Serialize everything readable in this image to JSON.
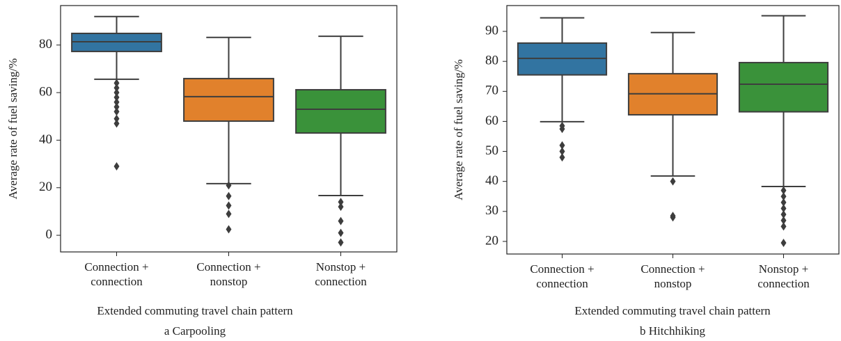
{
  "chart_data": [
    {
      "type": "box",
      "title": "a Carpooling",
      "xlabel": "Extended commuting travel chain pattern",
      "ylabel": "Average rate of fuel saving/%",
      "categories": [
        [
          "Connection +",
          "connection"
        ],
        [
          "Connection +",
          "nonstop"
        ],
        [
          "Nonstop +",
          "connection"
        ]
      ],
      "colors": [
        "#3274a1",
        "#e1812c",
        "#3a923a"
      ],
      "ylim": [
        -7,
        96.6
      ],
      "yticks": [
        0,
        20,
        40,
        60,
        80
      ],
      "series": [
        {
          "whislo": 65.6,
          "q1": 77.3,
          "med": 81.4,
          "q3": 84.9,
          "whishi": 92,
          "fliers": [
            64,
            62,
            60,
            58,
            56,
            54,
            52,
            49,
            47,
            29
          ]
        },
        {
          "whislo": 21.7,
          "q1": 48,
          "med": 58.3,
          "q3": 65.9,
          "whishi": 83.2,
          "fliers": [
            21,
            16.5,
            12.5,
            9,
            2.5
          ]
        },
        {
          "whislo": 16.7,
          "q1": 43,
          "med": 53,
          "q3": 61.2,
          "whishi": 83.7,
          "fliers": [
            14,
            12,
            6,
            1,
            -3
          ]
        }
      ]
    },
    {
      "type": "box",
      "title": "b Hitchhiking",
      "xlabel": "Extended commuting travel chain pattern",
      "ylabel": "Average rate of fuel saving/%",
      "categories": [
        [
          "Connection +",
          "connection"
        ],
        [
          "Connection +",
          "nonstop"
        ],
        [
          "Nonstop +",
          "connection"
        ]
      ],
      "colors": [
        "#3274a1",
        "#e1812c",
        "#3a923a"
      ],
      "ylim": [
        15.8,
        98.6
      ],
      "yticks": [
        20,
        30,
        40,
        50,
        60,
        70,
        80,
        90
      ],
      "series": [
        {
          "whislo": 59.9,
          "q1": 75.5,
          "med": 81,
          "q3": 86.1,
          "whishi": 94.5,
          "fliers": [
            58.5,
            57.5,
            52,
            50,
            48
          ]
        },
        {
          "whislo": 41.8,
          "q1": 62.2,
          "med": 69.2,
          "q3": 75.9,
          "whishi": 89.6,
          "fliers": [
            40,
            28.5,
            28
          ]
        },
        {
          "whislo": 38.3,
          "q1": 63.2,
          "med": 72.4,
          "q3": 79.6,
          "whishi": 95.2,
          "fliers": [
            37,
            35,
            33,
            31,
            29,
            27,
            25,
            19.5
          ]
        }
      ]
    }
  ]
}
